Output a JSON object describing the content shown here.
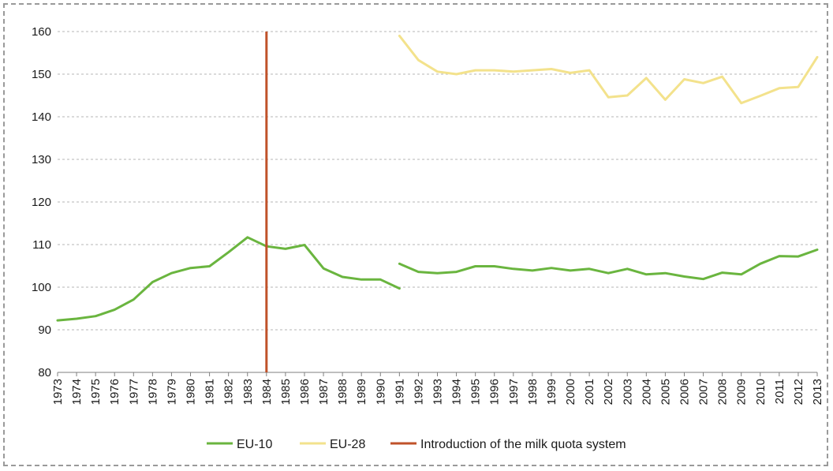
{
  "chart_data": {
    "type": "line",
    "title": "",
    "xlabel": "",
    "ylabel": "",
    "ylim": [
      80,
      160
    ],
    "yticks": [
      80,
      90,
      100,
      110,
      120,
      130,
      140,
      150,
      160
    ],
    "categories": [
      "1973",
      "1974",
      "1975",
      "1976",
      "1977",
      "1978",
      "1979",
      "1980",
      "1981",
      "1982",
      "1983",
      "1984",
      "1985",
      "1986",
      "1987",
      "1988",
      "1989",
      "1990",
      "1991",
      "1992",
      "1993",
      "1994",
      "1995",
      "1996",
      "1997",
      "1998",
      "1999",
      "2000",
      "2001",
      "2002",
      "2003",
      "2004",
      "2005",
      "2006",
      "2007",
      "2008",
      "2009",
      "2010",
      "2011",
      "2012",
      "2013"
    ],
    "grid": "horizontal dashed",
    "legend_position": "bottom",
    "series": [
      {
        "name": "EU-10",
        "color": "#6ab53f",
        "segments": [
          {
            "x": [
              "1973",
              "1974",
              "1975",
              "1976",
              "1977",
              "1978",
              "1979",
              "1980",
              "1981",
              "1982",
              "1983",
              "1984",
              "1985",
              "1986",
              "1987",
              "1988",
              "1989",
              "1990",
              "1991"
            ],
            "y": [
              92.2,
              92.6,
              93.2,
              94.7,
              97.1,
              101.2,
              103.3,
              104.5,
              104.9,
              108.2,
              111.7,
              109.6,
              109.0,
              109.9,
              104.4,
              102.4,
              101.8,
              101.8,
              99.7
            ]
          },
          {
            "x": [
              "1991",
              "1992",
              "1993",
              "1994",
              "1995",
              "1996",
              "1997",
              "1998",
              "1999",
              "2000",
              "2001",
              "2002",
              "2003",
              "2004",
              "2005",
              "2006",
              "2007",
              "2008",
              "2009",
              "2010",
              "2011",
              "2012",
              "2013"
            ],
            "y": [
              105.5,
              103.6,
              103.3,
              103.6,
              104.9,
              104.9,
              104.3,
              103.9,
              104.5,
              103.9,
              104.3,
              103.3,
              104.3,
              103.0,
              103.3,
              102.5,
              101.9,
              103.4,
              103.0,
              105.5,
              107.3,
              107.2,
              108.8
            ]
          }
        ]
      },
      {
        "name": "EU-28",
        "color": "#f3e28c",
        "segments": [
          {
            "x": [
              "1991",
              "1992",
              "1993",
              "1994",
              "1995",
              "1996",
              "1997",
              "1998",
              "1999",
              "2000",
              "2001",
              "2002",
              "2003",
              "2004",
              "2005",
              "2006",
              "2007",
              "2008",
              "2009",
              "2010",
              "2011",
              "2012",
              "2013"
            ],
            "y": [
              159.0,
              153.3,
              150.6,
              150.0,
              150.9,
              150.9,
              150.6,
              150.9,
              151.2,
              150.3,
              150.9,
              144.6,
              145.0,
              149.1,
              144.0,
              148.8,
              147.9,
              149.4,
              143.2,
              144.9,
              146.7,
              147.0,
              154.0
            ]
          }
        ]
      }
    ],
    "annotations": [
      {
        "name": "Introduction of the milk quota system",
        "type": "vertical-line",
        "x": "1984",
        "color": "#c0522a"
      }
    ]
  }
}
